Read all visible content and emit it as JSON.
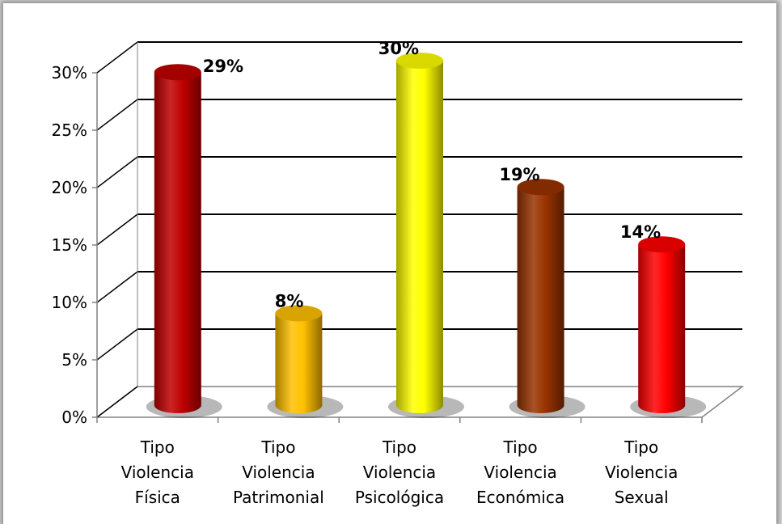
{
  "chart_data": {
    "type": "bar",
    "categories": [
      [
        "Tipo",
        "Violencia",
        "Física"
      ],
      [
        "Tipo",
        "Violencia",
        "Patrimonial"
      ],
      [
        "Tipo",
        "Violencia",
        "Psicológica"
      ],
      [
        "Tipo",
        "Violencia",
        "Económica"
      ],
      [
        "Tipo",
        "Violencia",
        "Sexual"
      ]
    ],
    "values": [
      29,
      8,
      30,
      19,
      14
    ],
    "data_labels": [
      "29%",
      "8%",
      "30%",
      "19%",
      "14%"
    ],
    "colors": [
      "#c00000",
      "#ffc000",
      "#ffff00",
      "#993300",
      "#ff0000"
    ],
    "y_ticks": [
      "0%",
      "5%",
      "10%",
      "15%",
      "20%",
      "25%",
      "30%"
    ],
    "ylim": [
      0,
      30
    ],
    "grid": true,
    "style": "3d-cylinder"
  }
}
